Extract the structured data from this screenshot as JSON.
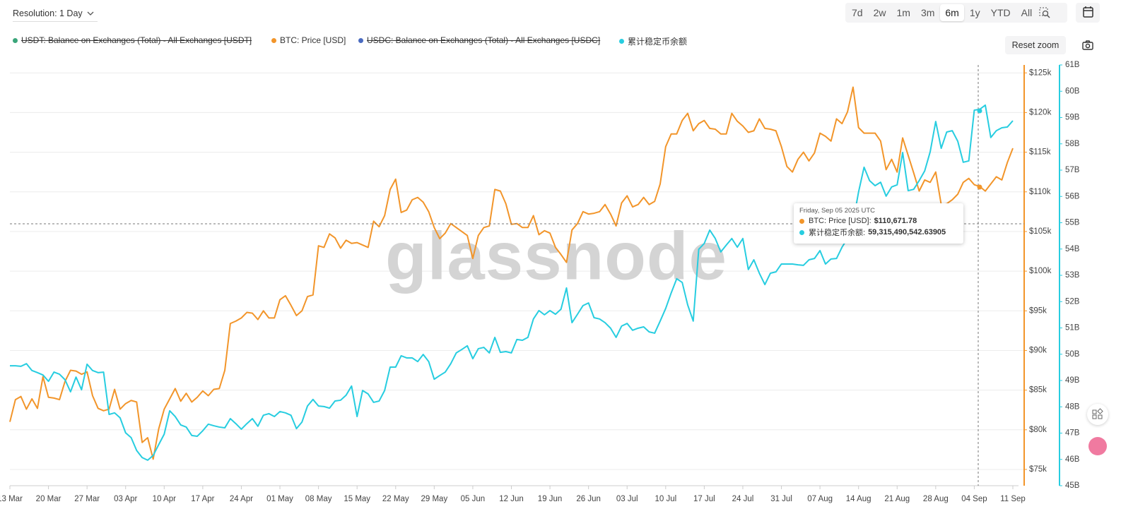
{
  "controls": {
    "resolution": "Resolution: 1 Day",
    "ranges": [
      {
        "label": "7d",
        "active": false
      },
      {
        "label": "2w",
        "active": false
      },
      {
        "label": "1m",
        "active": false
      },
      {
        "label": "3m",
        "active": false
      },
      {
        "label": "6m",
        "active": true
      },
      {
        "label": "1y",
        "active": false
      },
      {
        "label": "YTD",
        "active": false
      },
      {
        "label": "All",
        "active": false
      }
    ],
    "reset_zoom": "Reset zoom"
  },
  "watermark": "glassnode",
  "tooltip": {
    "date": "Friday, Sep 05 2025 UTC",
    "items": [
      {
        "label": "BTC: Price [USD]:",
        "value": "$110,671.78"
      },
      {
        "label": "累计稳定币余额:",
        "value": "59,315,490,542.63905"
      }
    ]
  },
  "chart_data": {
    "type": "line",
    "hidden_series": [
      {
        "name": "USDT: Balance on Exchanges (Total) - All Exchanges [USDT]",
        "color": "#3aa57a"
      },
      {
        "name": "USDC: Balance on Exchanges (Total) - All Exchanges [USDC]",
        "color": "#4a6bc0"
      }
    ],
    "x": [
      "13 Mar",
      "14 Mar",
      "15 Mar",
      "16 Mar",
      "17 Mar",
      "18 Mar",
      "19 Mar",
      "20 Mar",
      "21 Mar",
      "22 Mar",
      "23 Mar",
      "24 Mar",
      "25 Mar",
      "26 Mar",
      "27 Mar",
      "28 Mar",
      "29 Mar",
      "30 Mar",
      "31 Mar",
      "01 Apr",
      "02 Apr",
      "03 Apr",
      "04 Apr",
      "05 Apr",
      "06 Apr",
      "07 Apr",
      "08 Apr",
      "09 Apr",
      "10 Apr",
      "11 Apr",
      "12 Apr",
      "13 Apr",
      "14 Apr",
      "15 Apr",
      "16 Apr",
      "17 Apr",
      "18 Apr",
      "19 Apr",
      "20 Apr",
      "21 Apr",
      "22 Apr",
      "23 Apr",
      "24 Apr",
      "25 Apr",
      "26 Apr",
      "27 Apr",
      "28 Apr",
      "29 Apr",
      "30 Apr",
      "01 May",
      "02 May",
      "03 May",
      "04 May",
      "05 May",
      "06 May",
      "07 May",
      "08 May",
      "09 May",
      "10 May",
      "11 May",
      "12 May",
      "13 May",
      "14 May",
      "15 May",
      "16 May",
      "17 May",
      "18 May",
      "19 May",
      "20 May",
      "21 May",
      "22 May",
      "23 May",
      "24 May",
      "25 May",
      "26 May",
      "27 May",
      "28 May",
      "29 May",
      "30 May",
      "31 May",
      "01 Jun",
      "02 Jun",
      "03 Jun",
      "04 Jun",
      "05 Jun",
      "06 Jun",
      "07 Jun",
      "08 Jun",
      "09 Jun",
      "10 Jun",
      "11 Jun",
      "12 Jun",
      "13 Jun",
      "14 Jun",
      "15 Jun",
      "16 Jun",
      "17 Jun",
      "18 Jun",
      "19 Jun",
      "20 Jun",
      "21 Jun",
      "22 Jun",
      "23 Jun",
      "24 Jun",
      "25 Jun",
      "26 Jun",
      "27 Jun",
      "28 Jun",
      "29 Jun",
      "30 Jun",
      "01 Jul",
      "02 Jul",
      "03 Jul",
      "04 Jul",
      "05 Jul",
      "06 Jul",
      "07 Jul",
      "08 Jul",
      "09 Jul",
      "10 Jul",
      "11 Jul",
      "12 Jul",
      "13 Jul",
      "14 Jul",
      "15 Jul",
      "16 Jul",
      "17 Jul",
      "18 Jul",
      "19 Jul",
      "20 Jul",
      "21 Jul",
      "22 Jul",
      "23 Jul",
      "24 Jul",
      "25 Jul",
      "26 Jul",
      "27 Jul",
      "28 Jul",
      "29 Jul",
      "30 Jul",
      "31 Jul",
      "01 Aug",
      "02 Aug",
      "03 Aug",
      "04 Aug",
      "05 Aug",
      "06 Aug",
      "07 Aug",
      "08 Aug",
      "09 Aug",
      "10 Aug",
      "11 Aug",
      "12 Aug",
      "13 Aug",
      "14 Aug",
      "15 Aug",
      "16 Aug",
      "17 Aug",
      "18 Aug",
      "19 Aug",
      "20 Aug",
      "21 Aug",
      "22 Aug",
      "23 Aug",
      "24 Aug",
      "25 Aug",
      "26 Aug",
      "27 Aug",
      "28 Aug",
      "29 Aug",
      "30 Aug",
      "31 Aug",
      "01 Sep",
      "02 Sep",
      "03 Sep",
      "04 Sep",
      "05 Sep",
      "06 Sep",
      "07 Sep",
      "08 Sep",
      "09 Sep",
      "10 Sep",
      "11 Sep"
    ],
    "xticks": [
      "13 Mar",
      "20 Mar",
      "27 Mar",
      "03 Apr",
      "10 Apr",
      "17 Apr",
      "24 Apr",
      "01 May",
      "08 May",
      "15 May",
      "22 May",
      "29 May",
      "05 Jun",
      "12 Jun",
      "19 Jun",
      "26 Jun",
      "03 Jul",
      "10 Jul",
      "17 Jul",
      "24 Jul",
      "31 Jul",
      "07 Aug",
      "14 Aug",
      "21 Aug",
      "28 Aug",
      "04 Sep",
      "11 Sep"
    ],
    "series": [
      {
        "name": "BTC: Price [USD]",
        "color": "#f2952a",
        "axis": "y",
        "values": [
          81000,
          83800,
          84200,
          82600,
          83900,
          82700,
          86700,
          84100,
          84000,
          83800,
          86100,
          87500,
          87400,
          87000,
          87300,
          84300,
          82700,
          82400,
          82600,
          85100,
          82600,
          83300,
          83700,
          83500,
          78400,
          79000,
          76300,
          80100,
          82600,
          83900,
          85200,
          83600,
          84600,
          83500,
          84100,
          84900,
          84300,
          85100,
          85200,
          87500,
          93400,
          93700,
          94100,
          94800,
          94700,
          93900,
          95000,
          94100,
          94100,
          96400,
          96900,
          95700,
          94400,
          95000,
          96800,
          97000,
          103200,
          103000,
          104700,
          104200,
          102900,
          103900,
          103500,
          103600,
          103300,
          103000,
          106300,
          105600,
          107000,
          110300,
          111600,
          107400,
          107700,
          109000,
          109300,
          108700,
          107500,
          105500,
          104100,
          104800,
          106000,
          105500,
          105000,
          104500,
          101600,
          104500,
          105500,
          105700,
          110300,
          110100,
          108500,
          105900,
          106000,
          105500,
          105500,
          107000,
          104600,
          105100,
          104800,
          103000,
          102100,
          101100,
          105200,
          106000,
          107500,
          107200,
          107300,
          107500,
          108400,
          107200,
          105700,
          108600,
          109500,
          108100,
          108400,
          109300,
          108400,
          108800,
          111000,
          115700,
          117300,
          117300,
          119000,
          119900,
          117700,
          118600,
          119000,
          118000,
          117900,
          117300,
          117300,
          119900,
          118900,
          118300,
          117500,
          117700,
          119200,
          118000,
          117900,
          117700,
          115700,
          113200,
          112500,
          114100,
          115000,
          113900,
          114900,
          117400,
          117000,
          116400,
          119200,
          118600,
          120100,
          123200,
          118100,
          117400,
          117400,
          117400,
          116400,
          112800,
          114100,
          112500,
          116800,
          114600,
          112400,
          110100,
          111500,
          111200,
          112500,
          108400,
          108500,
          109000,
          109700,
          111200,
          111700,
          110900,
          110671.78,
          110100,
          111000,
          111900,
          111500,
          113700,
          115500
        ]
      },
      {
        "name": "累计稳定币余额",
        "color": "#27cde0",
        "axis": "y2",
        "values": [
          49560000000,
          49560000000,
          49540000000,
          49640000000,
          49380000000,
          49300000000,
          49210000000,
          48970000000,
          49320000000,
          49240000000,
          49030000000,
          48570000000,
          49130000000,
          48650000000,
          49620000000,
          49380000000,
          49300000000,
          49320000000,
          47710000000,
          47770000000,
          47580000000,
          47010000000,
          46830000000,
          46340000000,
          46070000000,
          45970000000,
          46150000000,
          46560000000,
          46960000000,
          47850000000,
          47630000000,
          47310000000,
          47230000000,
          46910000000,
          46880000000,
          47090000000,
          47340000000,
          47280000000,
          47230000000,
          47200000000,
          47550000000,
          47360000000,
          47150000000,
          47360000000,
          47550000000,
          47260000000,
          47680000000,
          47740000000,
          47630000000,
          47820000000,
          47770000000,
          47680000000,
          47170000000,
          47420000000,
          48030000000,
          48280000000,
          48030000000,
          48010000000,
          47950000000,
          48220000000,
          48250000000,
          48440000000,
          48790000000,
          47630000000,
          48620000000,
          48490000000,
          48170000000,
          48220000000,
          48620000000,
          49510000000,
          49510000000,
          49940000000,
          49860000000,
          49860000000,
          49720000000,
          49990000000,
          49720000000,
          49050000000,
          49190000000,
          49320000000,
          49640000000,
          50050000000,
          50180000000,
          50320000000,
          49830000000,
          50210000000,
          50260000000,
          50050000000,
          50640000000,
          50070000000,
          50100000000,
          50050000000,
          50560000000,
          50530000000,
          50640000000,
          51340000000,
          51660000000,
          51500000000,
          51660000000,
          51520000000,
          51710000000,
          52520000000,
          51200000000,
          51520000000,
          51850000000,
          51950000000,
          51390000000,
          51340000000,
          51200000000,
          50990000000,
          50640000000,
          51070000000,
          51170000000,
          50910000000,
          50990000000,
          51040000000,
          50850000000,
          50800000000,
          51260000000,
          51740000000,
          52330000000,
          52870000000,
          52730000000,
          51870000000,
          51260000000,
          53990000000,
          54210000000,
          54720000000,
          54400000000,
          53890000000,
          54150000000,
          54400000000,
          54070000000,
          54400000000,
          53220000000,
          53590000000,
          53080000000,
          52650000000,
          53080000000,
          53130000000,
          53430000000,
          53430000000,
          53430000000,
          53400000000,
          53380000000,
          53590000000,
          53640000000,
          53940000000,
          53430000000,
          53620000000,
          53640000000,
          54070000000,
          54400000000,
          55010000000,
          56170000000,
          57110000000,
          56600000000,
          56410000000,
          56540000000,
          56010000000,
          56360000000,
          56440000000,
          57670000000,
          56220000000,
          56270000000,
          56600000000,
          56970000000,
          57700000000,
          58850000000,
          57830000000,
          58450000000,
          58500000000,
          58100000000,
          57300000000,
          57350000000,
          59280000000,
          59315490542.63905,
          59470000000,
          58240000000,
          58500000000,
          58610000000,
          58640000000,
          58880000000
        ]
      }
    ],
    "ylim": [
      72950,
      126000
    ],
    "yticks": [
      {
        "value": 75000,
        "label": "$75k"
      },
      {
        "value": 80000,
        "label": "$80k"
      },
      {
        "value": 85000,
        "label": "$85k"
      },
      {
        "value": 90000,
        "label": "$90k"
      },
      {
        "value": 95000,
        "label": "$95k"
      },
      {
        "value": 100000,
        "label": "$100k"
      },
      {
        "value": 105000,
        "label": "$105k"
      },
      {
        "value": 110000,
        "label": "$110k"
      },
      {
        "value": 115000,
        "label": "$115k"
      },
      {
        "value": 120000,
        "label": "$120k"
      },
      {
        "value": 125000,
        "label": "$125k"
      }
    ],
    "y2lim": [
      45000000000,
      61000000000
    ],
    "y2ticks": [
      {
        "value": 45000000000,
        "label": "45B"
      },
      {
        "value": 46000000000,
        "label": "46B"
      },
      {
        "value": 47000000000,
        "label": "47B"
      },
      {
        "value": 48000000000,
        "label": "48B"
      },
      {
        "value": 49000000000,
        "label": "49B"
      },
      {
        "value": 50000000000,
        "label": "50B"
      },
      {
        "value": 51000000000,
        "label": "51B"
      },
      {
        "value": 52000000000,
        "label": "52B"
      },
      {
        "value": 53000000000,
        "label": "53B"
      },
      {
        "value": 54000000000,
        "label": "54B"
      },
      {
        "value": 55000000000,
        "label": "55B"
      },
      {
        "value": 56000000000,
        "label": "56B"
      },
      {
        "value": 57000000000,
        "label": "57B"
      },
      {
        "value": 58000000000,
        "label": "58B"
      },
      {
        "value": 59000000000,
        "label": "59B"
      },
      {
        "value": 60000000000,
        "label": "60B"
      },
      {
        "value": 61000000000,
        "label": "61B"
      }
    ],
    "grid": true
  }
}
